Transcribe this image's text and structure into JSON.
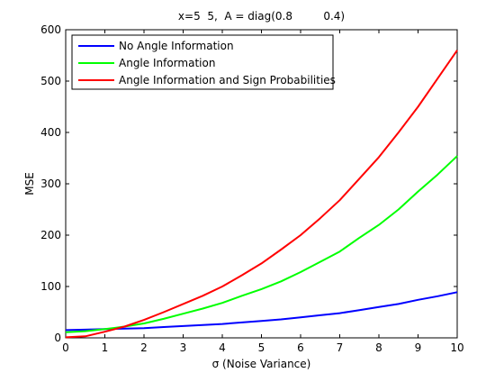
{
  "chart_data": {
    "type": "line",
    "title": "x=5  5,  A = diag(0.8         0.4)",
    "xlabel": "σ (Noise Variance)",
    "ylabel": "MSE",
    "xlim": [
      0,
      10
    ],
    "ylim": [
      0,
      600
    ],
    "xticks": [
      0,
      1,
      2,
      3,
      4,
      5,
      6,
      7,
      8,
      9,
      10
    ],
    "yticks": [
      0,
      100,
      200,
      300,
      400,
      500,
      600
    ],
    "grid": false,
    "legend_position": "top-left",
    "series": [
      {
        "name": "No Angle Information",
        "color": "#0000ff",
        "x": [
          0,
          0.5,
          1,
          1.5,
          2,
          2.5,
          3,
          3.5,
          4,
          4.5,
          5,
          5.5,
          6,
          6.5,
          7,
          7.5,
          8,
          8.5,
          9,
          9.5,
          10
        ],
        "y": [
          15,
          16,
          17,
          18,
          19,
          21,
          23,
          25,
          27,
          30,
          33,
          36,
          40,
          44,
          48,
          54,
          60,
          66,
          74,
          81,
          89
        ]
      },
      {
        "name": "Angle Information",
        "color": "#00ff00",
        "x": [
          0,
          0.5,
          1,
          1.5,
          2,
          2.5,
          3,
          3.5,
          4,
          4.5,
          5,
          5.5,
          6,
          6.5,
          7,
          7.5,
          8,
          8.5,
          9,
          9.5,
          10
        ],
        "y": [
          11,
          13,
          17,
          22,
          28,
          37,
          47,
          57,
          68,
          82,
          95,
          110,
          128,
          148,
          168,
          195,
          220,
          250,
          285,
          318,
          354
        ]
      },
      {
        "name": "Angle Information and Sign Probabilities",
        "color": "#ff0000",
        "x": [
          0,
          0.5,
          1,
          1.5,
          2,
          2.5,
          3,
          3.5,
          4,
          4.5,
          5,
          5.5,
          6,
          6.5,
          7,
          7.5,
          8,
          8.5,
          9,
          9.5,
          10
        ],
        "y": [
          1,
          3,
          12,
          22,
          35,
          50,
          66,
          82,
          100,
          122,
          145,
          172,
          200,
          233,
          268,
          310,
          352,
          400,
          450,
          505,
          560
        ]
      }
    ]
  }
}
